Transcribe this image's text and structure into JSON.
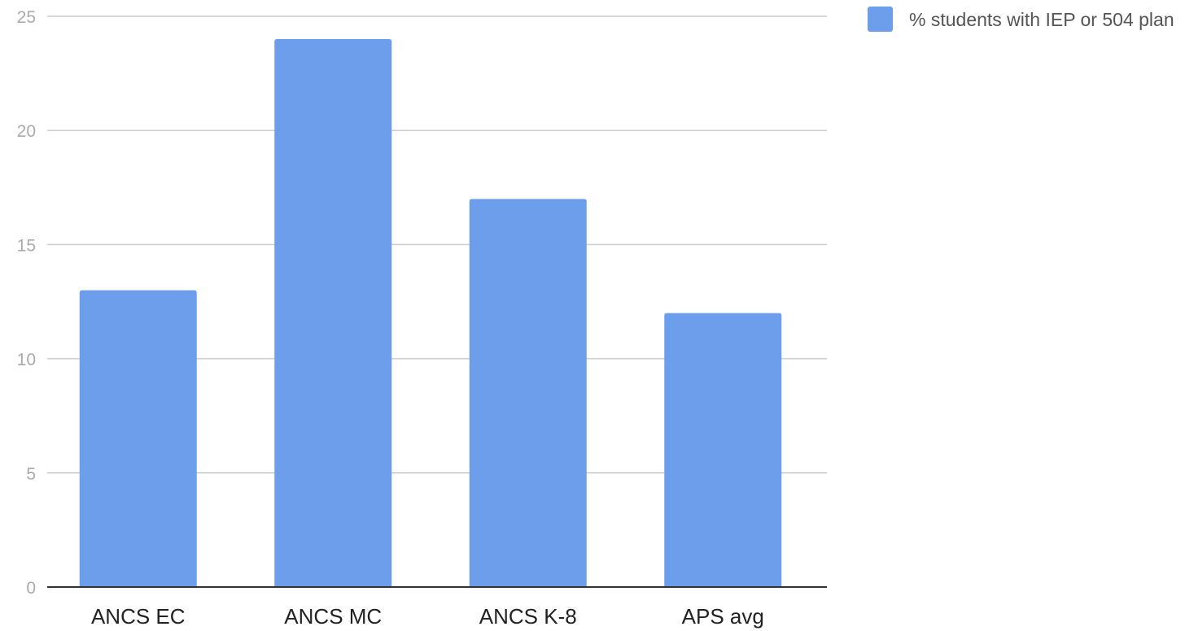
{
  "chart_data": {
    "type": "bar",
    "categories": [
      "ANCS EC",
      "ANCS MC",
      "ANCS K-8",
      "APS avg"
    ],
    "series": [
      {
        "name": "% students with IEP or 504 plan",
        "values": [
          13,
          24,
          17,
          12
        ]
      }
    ],
    "ylim": [
      0,
      25
    ],
    "yticks": [
      "0",
      "5",
      "10",
      "15",
      "20",
      "25"
    ],
    "grid": true,
    "legend_position": "top-right"
  },
  "colors": {
    "bar": "#6d9eeb",
    "grid": "#cccccc",
    "axis": "#333333",
    "tick_label": "#aaaaaa",
    "category_label": "#222222"
  }
}
